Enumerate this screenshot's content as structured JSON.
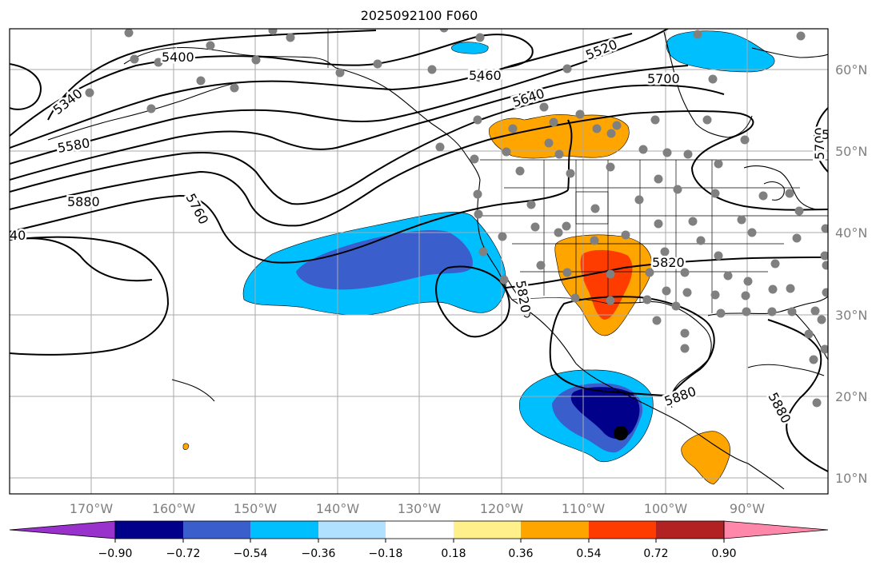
{
  "title": "2025092100 F060",
  "lon_ticks": [
    "170°W",
    "160°W",
    "150°W",
    "140°W",
    "130°W",
    "120°W",
    "110°W",
    "100°W",
    "90°W"
  ],
  "lat_ticks": [
    "60°N",
    "50°N",
    "40°N",
    "30°N",
    "20°N",
    "10°N"
  ],
  "contour_labels": [
    "5340",
    "5400",
    "5460",
    "5520",
    "5580",
    "5640",
    "5700",
    "5760",
    "5820",
    "5820",
    "5880",
    "5880",
    "5700",
    "5880",
    "5",
    "40"
  ],
  "colorbar": {
    "ticks": [
      "−0.90",
      "−0.72",
      "−0.54",
      "−0.36",
      "−0.18",
      "0.18",
      "0.36",
      "0.54",
      "0.72",
      "0.90"
    ],
    "colors": [
      "#9932cc",
      "#00008b",
      "#3a5fcd",
      "#00bfff",
      "#b0e2ff",
      "#ffffff",
      "#fff08c",
      "#ffa500",
      "#ff3c00",
      "#b22222",
      "#ff88aa"
    ]
  },
  "fill_colors": {
    "neg_light": "#00bfff",
    "neg_mid": "#3a5fcd",
    "neg_dark": "#00008b",
    "pos_light": "#ffa500",
    "pos_mid": "#ff3c00",
    "pos_pale": "#fff08c"
  }
}
